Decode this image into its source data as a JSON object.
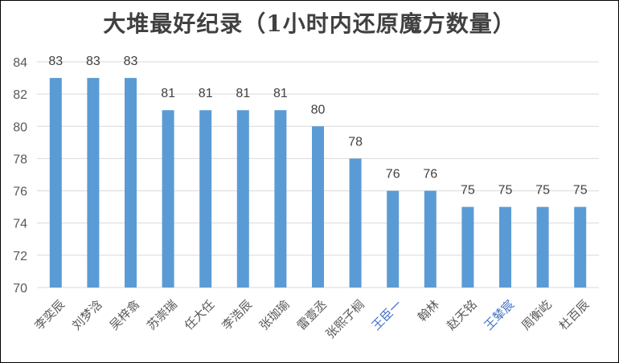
{
  "chart_data": {
    "type": "bar",
    "title": "大堆最好纪录（1小时内还原魔方数量）",
    "categories": [
      "李奕辰",
      "刘梦浛",
      "吴梓翕",
      "苏崇瑞",
      "任大任",
      "李浩辰",
      "张珈瑜",
      "雷壹丞",
      "张熙子榈",
      "王臣一",
      "翰林",
      "赵天铭",
      "王辇宸",
      "周衡屹",
      "杜百辰"
    ],
    "values": [
      83,
      83,
      83,
      81,
      81,
      81,
      81,
      80,
      78,
      76,
      76,
      75,
      75,
      75,
      75
    ],
    "yticks": [
      "70",
      "72",
      "74",
      "76",
      "78",
      "80",
      "82",
      "84"
    ],
    "ylim": [
      70,
      84
    ],
    "grid": true,
    "bar_color": "#5b9bd5",
    "grid_color": "#d9d9d9",
    "label_color": "#404040",
    "axis_label_color": "#595959",
    "highlight_label_color": "#4472c4"
  }
}
